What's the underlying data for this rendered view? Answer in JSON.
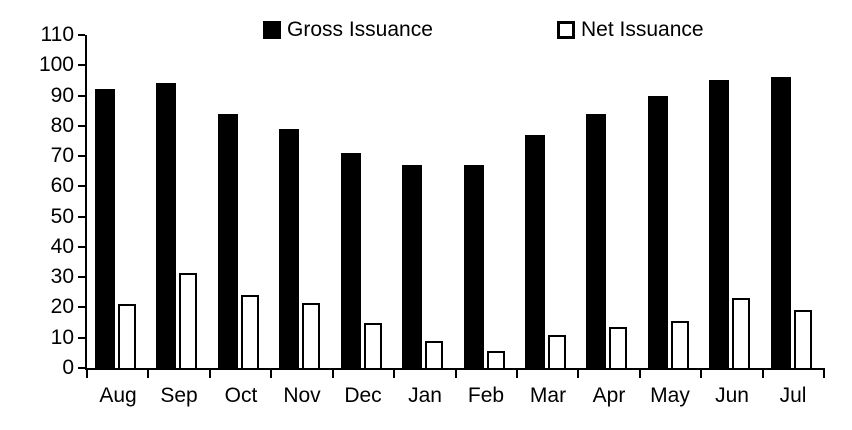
{
  "chart_data": {
    "type": "bar",
    "categories": [
      "Aug",
      "Sep",
      "Oct",
      "Nov",
      "Dec",
      "Jan",
      "Feb",
      "Mar",
      "Apr",
      "May",
      "Jun",
      "Jul"
    ],
    "series": [
      {
        "name": "Gross Issuance",
        "style": "filled-black",
        "values": [
          92,
          94,
          84,
          79,
          71,
          67,
          67,
          77,
          84,
          90,
          95,
          96
        ]
      },
      {
        "name": "Net Issuance",
        "style": "white-outlined",
        "values": [
          21,
          31.5,
          24,
          21.5,
          15,
          9,
          5.5,
          11,
          13.5,
          15.5,
          23,
          19
        ]
      }
    ],
    "title": "",
    "xlabel": "",
    "ylabel": "",
    "ylim": [
      0,
      110
    ],
    "ytick_step": 10,
    "ytick_labels": [
      "0",
      "10",
      "20",
      "30",
      "40",
      "50",
      "60",
      "70",
      "80",
      "90",
      "100",
      "110"
    ],
    "grid": false,
    "legend_position": "top",
    "colors": {
      "gross_fill": "#000000",
      "net_fill": "#ffffff",
      "net_border": "#000000",
      "axis": "#000000",
      "background": "#ffffff",
      "text": "#000000"
    }
  }
}
